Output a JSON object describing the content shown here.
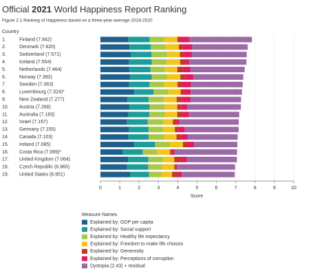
{
  "chart_data": {
    "type": "stacked-barh",
    "title_parts": [
      "Official ",
      "2021",
      " World Happiness Report Ranking"
    ],
    "subtitle": "Figure 2.1 Ranking of Happiness based on a three-year-average 2018-2020",
    "category_header": "Country",
    "ranks": [
      "1.",
      "2.",
      "3.",
      "4.",
      "5.",
      "6.",
      "7.",
      "8.",
      "9.",
      "10.",
      "11.",
      "12.",
      "13.",
      "14.",
      "15.",
      "16.",
      "17.",
      "18.",
      "19."
    ],
    "categories": [
      "Finland (7.842)",
      "Denmark (7.620)",
      "Switzerland (7.571)",
      "Iceland (7.554)",
      "Netherlands (7.464)",
      "Norway (7.392)",
      "Sweden (7.363)",
      "Luxembourg (7.324)*",
      "New Zealand (7.277)",
      "Austria (7.268)",
      "Australia (7.183)",
      "Israel (7.157)",
      "Germany (7.155)",
      "Canada (7.103)",
      "Ireland (7.085)",
      "Costa Rica (7.069)*",
      "United Kingdom (7.064)",
      "Czech Republic (6.965)",
      "United States (6.951)"
    ],
    "series": [
      {
        "name": "Explained by: GDP per capita",
        "color": "#1f5f8b",
        "values": [
          1.446,
          1.502,
          1.566,
          1.482,
          1.501,
          1.543,
          1.478,
          1.751,
          1.4,
          1.492,
          1.453,
          1.376,
          1.48,
          1.447,
          1.751,
          1.154,
          1.423,
          1.374,
          1.533
        ]
      },
      {
        "name": "Explained by: Social support",
        "color": "#1b9e99",
        "values": [
          1.106,
          1.108,
          1.079,
          1.172,
          1.079,
          1.108,
          1.062,
          1.003,
          1.094,
          1.062,
          1.076,
          1.074,
          1.015,
          1.044,
          1.076,
          1.036,
          1.062,
          1.096,
          0.985
        ]
      },
      {
        "name": "Explained by: Healthy life expectancy",
        "color": "#a9c84b",
        "values": [
          0.741,
          0.763,
          0.816,
          0.772,
          0.753,
          0.782,
          0.763,
          0.76,
          0.785,
          0.782,
          0.801,
          0.788,
          0.757,
          0.798,
          0.767,
          0.743,
          0.757,
          0.721,
          0.649
        ]
      },
      {
        "name": "Explained by: Freedom to make life choices",
        "color": "#f4c51b",
        "values": [
          0.691,
          0.686,
          0.653,
          0.698,
          0.647,
          0.703,
          0.685,
          0.639,
          0.665,
          0.64,
          0.647,
          0.509,
          0.6,
          0.648,
          0.676,
          0.676,
          0.58,
          0.633,
          0.539
        ]
      },
      {
        "name": "Explained by: Generosity",
        "color": "#c0392b",
        "values": [
          0.124,
          0.208,
          0.204,
          0.293,
          0.302,
          0.249,
          0.244,
          0.166,
          0.276,
          0.215,
          0.291,
          0.208,
          0.178,
          0.246,
          0.233,
          0.097,
          0.34,
          0.086,
          0.309
        ]
      },
      {
        "name": "Explained by: Perceptions of corruption",
        "color": "#e5195f",
        "values": [
          0.481,
          0.485,
          0.413,
          0.17,
          0.384,
          0.427,
          0.448,
          0.353,
          0.445,
          0.292,
          0.317,
          0.119,
          0.34,
          0.335,
          0.337,
          0.133,
          0.306,
          0.039,
          0.196
        ]
      },
      {
        "name": "Dystopia (2.43) + residual",
        "color": "#9c6ba7",
        "values": [
          3.253,
          2.868,
          2.839,
          2.967,
          2.798,
          2.58,
          2.683,
          2.653,
          2.612,
          2.784,
          2.598,
          3.083,
          2.785,
          2.585,
          2.244,
          3.23,
          2.596,
          3.016,
          2.74
        ]
      }
    ],
    "xlim": [
      0,
      10
    ],
    "xticks": [
      0,
      1,
      2,
      3,
      4,
      5,
      6,
      7,
      8,
      9,
      10
    ],
    "x_label": "Score",
    "legend_title": "Measure Names",
    "grid": true
  }
}
